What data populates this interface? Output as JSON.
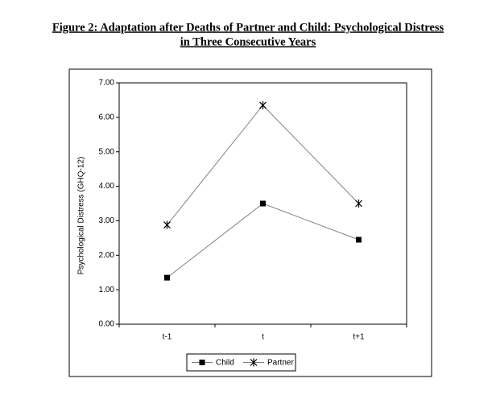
{
  "chart_data": {
    "type": "line",
    "title": [
      "Figure 2: Adaptation after Deaths of Partner and Child: Psychological Distress",
      "in Three Consecutive Years"
    ],
    "y_label": "Psychological Distress (GHQ-12)",
    "categories": [
      "t-1",
      "t",
      "t+1"
    ],
    "series": [
      {
        "name": "Child",
        "color": "#000000",
        "marker": "square",
        "values": [
          1.35,
          3.5,
          2.45
        ]
      },
      {
        "name": "Partner",
        "color": "#000000",
        "marker": "asterisk",
        "values": [
          2.88,
          6.35,
          3.5
        ]
      }
    ],
    "ylim": [
      0,
      7
    ],
    "yticks": [
      {
        "value": 0,
        "label": "0.00"
      },
      {
        "value": 1,
        "label": "1.00"
      },
      {
        "value": 2,
        "label": "2.00"
      },
      {
        "value": 3,
        "label": "3.00"
      },
      {
        "value": 4,
        "label": "4.00"
      },
      {
        "value": 5,
        "label": "5.00"
      },
      {
        "value": 6,
        "label": "6.00"
      },
      {
        "value": 7,
        "label": "7.00"
      }
    ],
    "grid": false,
    "legend": "bottom"
  }
}
